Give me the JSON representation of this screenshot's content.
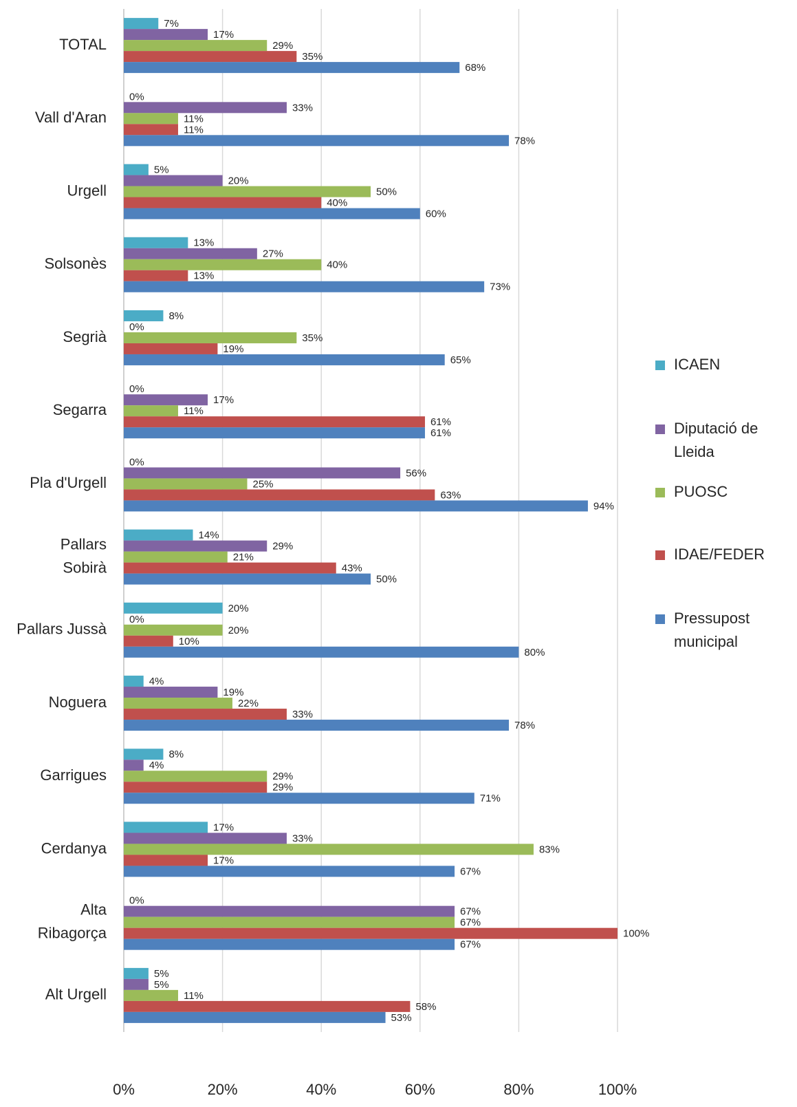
{
  "chart_data": {
    "type": "bar",
    "orientation": "horizontal",
    "categories": [
      "TOTAL",
      "Vall d'Aran",
      "Urgell",
      "Solsonès",
      "Segrià",
      "Segarra",
      "Pla d'Urgell",
      "Pallars Sobirà",
      "Pallars Jussà",
      "Noguera",
      "Garrigues",
      "Cerdanya",
      "Alta Ribagorça",
      "Alt Urgell"
    ],
    "series": [
      {
        "name": "ICAEN",
        "color": "#4bacc6",
        "values": [
          7,
          0,
          5,
          13,
          8,
          0,
          0,
          14,
          20,
          4,
          8,
          17,
          0,
          5
        ],
        "value_labels": [
          "7%",
          "0%",
          "5%",
          "13%",
          "8%",
          "0%",
          "0%",
          "14%",
          "20%",
          "4%",
          "8%",
          "17%",
          "0%",
          "5%"
        ]
      },
      {
        "name": "Diputació de Lleida",
        "color": "#8064a2",
        "values": [
          17,
          33,
          20,
          27,
          0,
          17,
          56,
          29,
          0,
          19,
          4,
          33,
          67,
          5
        ],
        "value_labels": [
          "17%",
          "33%",
          "20%",
          "27%",
          "0%",
          "17%",
          "56%",
          "29%",
          "0%",
          "19%",
          "4%",
          "33%",
          "67%",
          "5%"
        ]
      },
      {
        "name": "PUOSC",
        "color": "#9bbb59",
        "values": [
          29,
          11,
          50,
          40,
          35,
          11,
          25,
          21,
          20,
          22,
          29,
          83,
          67,
          11
        ],
        "value_labels": [
          "29%",
          "11%",
          "50%",
          "40%",
          "35%",
          "11%",
          "25%",
          "21%",
          "20%",
          "22%",
          "29%",
          "83%",
          "67%",
          "11%"
        ]
      },
      {
        "name": "IDAE/FEDER",
        "color": "#c0504d",
        "values": [
          35,
          11,
          40,
          13,
          19,
          61,
          63,
          43,
          10,
          33,
          29,
          17,
          100,
          58
        ],
        "value_labels": [
          "35%",
          "11%",
          "40%",
          "13%",
          "19%",
          "61%",
          "63%",
          "43%",
          "10%",
          "33%",
          "29%",
          "17%",
          "100%",
          "58%"
        ]
      },
      {
        "name": "Pressupost municipal",
        "color": "#4f81bd",
        "values": [
          68,
          78,
          60,
          73,
          65,
          61,
          94,
          50,
          80,
          78,
          71,
          67,
          67,
          53
        ],
        "value_labels": [
          "68%",
          "78%",
          "60%",
          "73%",
          "65%",
          "61%",
          "94%",
          "50%",
          "80%",
          "78%",
          "71%",
          "67%",
          "67%",
          "53%"
        ]
      }
    ],
    "xlim": [
      0,
      100
    ],
    "xticks": [
      {
        "value": 0,
        "label": "0%"
      },
      {
        "value": 20,
        "label": "20%"
      },
      {
        "value": 40,
        "label": "40%"
      },
      {
        "value": 60,
        "label": "60%"
      },
      {
        "value": 80,
        "label": "80%"
      },
      {
        "value": 100,
        "label": "100%"
      }
    ],
    "grid": true,
    "legend": "right"
  }
}
